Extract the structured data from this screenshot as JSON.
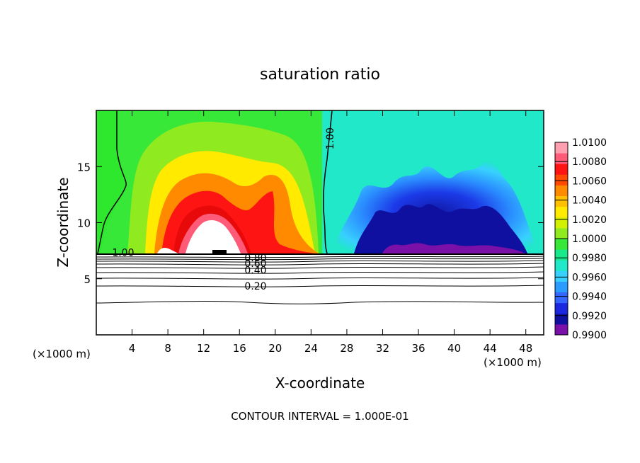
{
  "chart_data": {
    "type": "heatmap",
    "title": "saturation ratio",
    "xlabel": "X-coordinate",
    "ylabel": "Z-coordinate",
    "x_unit_left": "(×1000 m)",
    "x_unit_right": "(×1000 m)",
    "xlim": [
      0,
      50
    ],
    "ylim": [
      0,
      20
    ],
    "x_ticks": [
      4,
      8,
      12,
      16,
      20,
      24,
      28,
      32,
      36,
      40,
      44,
      48
    ],
    "x_tick_labels": [
      "4",
      "8",
      "12",
      "16",
      "20",
      "24",
      "28",
      "32",
      "36",
      "40",
      "44",
      "48"
    ],
    "y_ticks": [
      5,
      10,
      15
    ],
    "y_tick_labels": [
      "5",
      "10",
      "15"
    ],
    "footer": "CONTOUR INTERVAL = 1.000E-01",
    "colorbar": {
      "min": 0.99,
      "max": 1.01,
      "ticks": [
        1.01,
        1.008,
        1.006,
        1.004,
        1.002,
        1.0,
        0.998,
        0.996,
        0.994,
        0.992,
        0.99
      ],
      "tick_labels": [
        "1.0100",
        "1.0080",
        "1.0060",
        "1.0040",
        "1.0020",
        "1.0000",
        "0.9980",
        "0.9960",
        "0.9940",
        "0.9920",
        "0.9900"
      ],
      "colors": [
        "#7a10a8",
        "#1010a0",
        "#1c28e0",
        "#3366ff",
        "#2a9cff",
        "#38d0ff",
        "#20e8c8",
        "#18ea8c",
        "#38e838",
        "#90ea20",
        "#d2f000",
        "#ffea00",
        "#ffc000",
        "#ff8a00",
        "#ff4a00",
        "#ff1414",
        "#ff5a78",
        "#ffa0b0"
      ]
    },
    "contour_labels": [
      {
        "text": "1.00",
        "x": 3.0,
        "z": 7.3
      },
      {
        "text": "1.00",
        "x": 26.2,
        "z": 17.5,
        "rotate": -90
      },
      {
        "text": "0.80",
        "x": 17.8,
        "z": 6.8
      },
      {
        "text": "0.60",
        "x": 17.8,
        "z": 6.3
      },
      {
        "text": "0.40",
        "x": 17.8,
        "z": 5.7
      },
      {
        "text": "0.20",
        "x": 17.8,
        "z": 4.3
      }
    ]
  }
}
